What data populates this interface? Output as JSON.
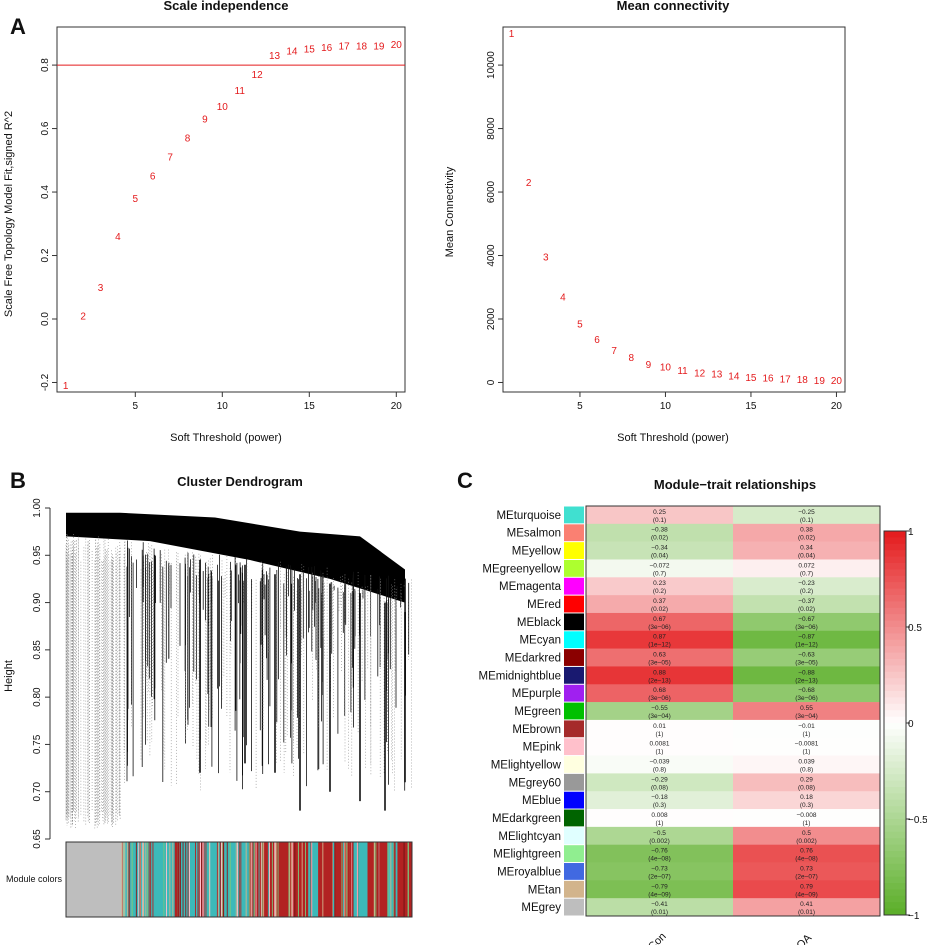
{
  "panel_letters": {
    "a": "A",
    "b": "B",
    "c": "C"
  },
  "chart_data": [
    {
      "type": "scatter",
      "id": "scale_independence",
      "title": "Scale independence",
      "xlabel": "Soft Threshold (power)",
      "ylabel": "Scale Free Topology Model Fit,signed R^2",
      "xlim": [
        0.5,
        20.5
      ],
      "ylim": [
        -0.23,
        0.92
      ],
      "xticks": [
        5,
        10,
        15,
        20
      ],
      "yticks": [
        -0.2,
        0.0,
        0.2,
        0.4,
        0.6,
        0.8
      ],
      "ytick_labels": [
        "-0.2",
        "0.0",
        "0.2",
        "0.4",
        "0.6",
        "0.8"
      ],
      "hline": 0.8,
      "hline_color": "#e41a1c",
      "marker_color": "#e41a1c",
      "x": [
        1,
        2,
        3,
        4,
        5,
        6,
        7,
        8,
        9,
        10,
        11,
        12,
        13,
        14,
        15,
        16,
        17,
        18,
        19,
        20
      ],
      "y": [
        -0.21,
        0.01,
        0.1,
        0.26,
        0.38,
        0.45,
        0.51,
        0.57,
        0.63,
        0.67,
        0.72,
        0.77,
        0.83,
        0.845,
        0.85,
        0.855,
        0.86,
        0.86,
        0.86,
        0.865
      ],
      "labels": [
        "1",
        "2",
        "3",
        "4",
        "5",
        "6",
        "7",
        "8",
        "9",
        "10",
        "11",
        "12",
        "13",
        "14",
        "15",
        "16",
        "17",
        "18",
        "19",
        "20"
      ]
    },
    {
      "type": "scatter",
      "id": "mean_connectivity",
      "title": "Mean connectivity",
      "xlabel": "Soft Threshold (power)",
      "ylabel": "Mean Connectivity",
      "xlim": [
        0.5,
        20.5
      ],
      "ylim": [
        -300,
        11200
      ],
      "xticks": [
        5,
        10,
        15,
        20
      ],
      "yticks": [
        0,
        2000,
        4000,
        6000,
        8000,
        10000
      ],
      "ytick_labels": [
        "0",
        "2000",
        "4000",
        "6000",
        "8000",
        "10000"
      ],
      "marker_color": "#e41a1c",
      "x": [
        1,
        2,
        3,
        4,
        5,
        6,
        7,
        8,
        9,
        10,
        11,
        12,
        13,
        14,
        15,
        16,
        17,
        18,
        19,
        20
      ],
      "y": [
        11000,
        6300,
        3950,
        2700,
        1850,
        1350,
        1000,
        780,
        560,
        480,
        380,
        300,
        260,
        200,
        160,
        140,
        110,
        90,
        70,
        60
      ],
      "labels": [
        "1",
        "2",
        "3",
        "4",
        "5",
        "6",
        "7",
        "8",
        "9",
        "10",
        "11",
        "12",
        "13",
        "14",
        "15",
        "16",
        "17",
        "18",
        "19",
        "20"
      ]
    },
    {
      "type": "dendrogram",
      "id": "cluster_dendrogram",
      "title": "Cluster Dendrogram",
      "ylabel": "Height",
      "ylim": [
        0.65,
        1.0
      ],
      "yticks": [
        0.65,
        0.7,
        0.75,
        0.8,
        0.85,
        0.9,
        0.95,
        1.0
      ],
      "ytick_labels": [
        "0.65",
        "0.70",
        "0.75",
        "0.80",
        "0.85",
        "0.90",
        "0.95",
        "1.00"
      ],
      "color_bar_label": "Module colors",
      "color_blocks": [
        {
          "color": "#bebebe",
          "weight": 12
        },
        {
          "color": "#3cb9b9",
          "weight": 10
        },
        {
          "color": "#b22222",
          "weight": 1
        },
        {
          "color": "#3cb9b9",
          "weight": 4
        },
        {
          "color": "#ffc0cb",
          "weight": 1
        },
        {
          "color": "#3cb9b9",
          "weight": 3
        },
        {
          "color": "#8b1a1a",
          "weight": 1
        },
        {
          "color": "#3cb9b9",
          "weight": 5
        },
        {
          "color": "#b22222",
          "weight": 12
        },
        {
          "color": "#3cb9b9",
          "weight": 2
        },
        {
          "color": "#b22222",
          "weight": 7
        },
        {
          "color": "#3cb9b9",
          "weight": 3
        },
        {
          "color": "#b22222",
          "weight": 4
        },
        {
          "color": "#3cb9b9",
          "weight": 2
        },
        {
          "color": "#b22222",
          "weight": 3
        }
      ]
    },
    {
      "type": "heatmap",
      "id": "module_trait",
      "title": "Module−trait relationships",
      "columns": [
        "Con",
        "OA"
      ],
      "colorbar": {
        "min": -1,
        "max": 1,
        "ticks": [
          1,
          0.5,
          0,
          -0.5,
          -1
        ],
        "tick_labels": [
          "1",
          "0.5",
          "0",
          "−0.5",
          "−1"
        ],
        "low": "#5aae27",
        "mid": "#ffffff",
        "high": "#e41a1c"
      },
      "rows": [
        {
          "name": "MEturquoise",
          "color": "#40e0d0",
          "con": 0.25,
          "oa": -0.25,
          "con_p": "(0.1)",
          "oa_p": "(0.1)",
          "con_t": "0.25",
          "oa_t": "−0.25"
        },
        {
          "name": "MEsalmon",
          "color": "#fa8072",
          "con": -0.38,
          "oa": 0.38,
          "con_p": "(0.02)",
          "oa_p": "(0.02)",
          "con_t": "−0.38",
          "oa_t": "0.38"
        },
        {
          "name": "MEyellow",
          "color": "#ffff00",
          "con": -0.34,
          "oa": 0.34,
          "con_p": "(0.04)",
          "oa_p": "(0.04)",
          "con_t": "−0.34",
          "oa_t": "0.34"
        },
        {
          "name": "MEgreenyellow",
          "color": "#adff2f",
          "con": -0.072,
          "oa": 0.072,
          "con_p": "(0.7)",
          "oa_p": "(0.7)",
          "con_t": "−0.072",
          "oa_t": "0.072"
        },
        {
          "name": "MEmagenta",
          "color": "#ff00ff",
          "con": 0.23,
          "oa": -0.23,
          "con_p": "(0.2)",
          "oa_p": "(0.2)",
          "con_t": "0.23",
          "oa_t": "−0.23"
        },
        {
          "name": "MEred",
          "color": "#ff0000",
          "con": 0.37,
          "oa": -0.37,
          "con_p": "(0.02)",
          "oa_p": "(0.02)",
          "con_t": "0.37",
          "oa_t": "−0.37"
        },
        {
          "name": "MEblack",
          "color": "#000000",
          "con": 0.67,
          "oa": -0.67,
          "con_p": "(3e−06)",
          "oa_p": "(3e−06)",
          "con_t": "0.67",
          "oa_t": "−0.67"
        },
        {
          "name": "MEcyan",
          "color": "#00ffff",
          "con": 0.87,
          "oa": -0.87,
          "con_p": "(1e−12)",
          "oa_p": "(1e−12)",
          "con_t": "0.87",
          "oa_t": "−0.87"
        },
        {
          "name": "MEdarkred",
          "color": "#8b0000",
          "con": 0.63,
          "oa": -0.63,
          "con_p": "(3e−05)",
          "oa_p": "(3e−05)",
          "con_t": "0.63",
          "oa_t": "−0.63"
        },
        {
          "name": "MEmidnightblue",
          "color": "#191970",
          "con": 0.88,
          "oa": -0.88,
          "con_p": "(2e−13)",
          "oa_p": "(2e−13)",
          "con_t": "0.88",
          "oa_t": "−0.88"
        },
        {
          "name": "MEpurple",
          "color": "#a020f0",
          "con": 0.68,
          "oa": -0.68,
          "con_p": "(3e−06)",
          "oa_p": "(3e−06)",
          "con_t": "0.68",
          "oa_t": "−0.68"
        },
        {
          "name": "MEgreen",
          "color": "#00c000",
          "con": -0.55,
          "oa": 0.55,
          "con_p": "(3e−04)",
          "oa_p": "(3e−04)",
          "con_t": "−0.55",
          "oa_t": "0.55"
        },
        {
          "name": "MEbrown",
          "color": "#a52a2a",
          "con": 0.01,
          "oa": -0.01,
          "con_p": "(1)",
          "oa_p": "(1)",
          "con_t": "0.01",
          "oa_t": "−0.01"
        },
        {
          "name": "MEpink",
          "color": "#ffc0cb",
          "con": 0.0081,
          "oa": -0.0081,
          "con_p": "(1)",
          "oa_p": "(1)",
          "con_t": "0.0081",
          "oa_t": "−0.0081"
        },
        {
          "name": "MElightyellow",
          "color": "#ffffe0",
          "con": -0.039,
          "oa": 0.039,
          "con_p": "(0.8)",
          "oa_p": "(0.8)",
          "con_t": "−0.039",
          "oa_t": "0.039"
        },
        {
          "name": "MEgrey60",
          "color": "#999999",
          "con": -0.29,
          "oa": 0.29,
          "con_p": "(0.08)",
          "oa_p": "(0.08)",
          "con_t": "−0.29",
          "oa_t": "0.29"
        },
        {
          "name": "MEblue",
          "color": "#0000ff",
          "con": -0.18,
          "oa": 0.18,
          "con_p": "(0.3)",
          "oa_p": "(0.3)",
          "con_t": "−0.18",
          "oa_t": "0.18"
        },
        {
          "name": "MEdarkgreen",
          "color": "#006400",
          "con": 0.008,
          "oa": -0.008,
          "con_p": "(1)",
          "oa_p": "(1)",
          "con_t": "0.008",
          "oa_t": "−0.008"
        },
        {
          "name": "MElightcyan",
          "color": "#e0ffff",
          "con": -0.5,
          "oa": 0.5,
          "con_p": "(0.002)",
          "oa_p": "(0.002)",
          "con_t": "−0.5",
          "oa_t": "0.5"
        },
        {
          "name": "MElightgreen",
          "color": "#90ee90",
          "con": -0.76,
          "oa": 0.76,
          "con_p": "(4e−08)",
          "oa_p": "(4e−08)",
          "con_t": "−0.76",
          "oa_t": "0.76"
        },
        {
          "name": "MEroyalblue",
          "color": "#4169e1",
          "con": -0.73,
          "oa": 0.73,
          "con_p": "(2e−07)",
          "oa_p": "(2e−07)",
          "con_t": "−0.73",
          "oa_t": "0.73"
        },
        {
          "name": "MEtan",
          "color": "#d2b48c",
          "con": -0.79,
          "oa": 0.79,
          "con_p": "(4e−09)",
          "oa_p": "(4e−09)",
          "con_t": "−0.79",
          "oa_t": "0.79"
        },
        {
          "name": "MEgrey",
          "color": "#bebebe",
          "con": -0.41,
          "oa": 0.41,
          "con_p": "(0.01)",
          "oa_p": "(0.01)",
          "con_t": "−0.41",
          "oa_t": "0.41"
        }
      ]
    }
  ]
}
